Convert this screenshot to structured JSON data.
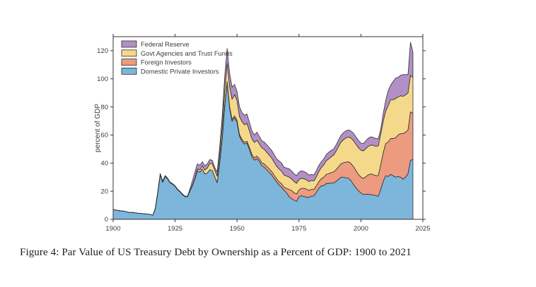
{
  "figure": {
    "caption": "Figure 4: Par Value of US Treasury Debt by Ownership as a Percent of GDP: 1900 to 2021"
  },
  "chart_data": {
    "type": "area",
    "stacked": true,
    "title": "",
    "xlabel": "",
    "ylabel": "percent of GDP",
    "xlim": [
      1900,
      2025
    ],
    "ylim": [
      0,
      130
    ],
    "x_ticks": [
      1900,
      1925,
      1950,
      1975,
      2000,
      2025
    ],
    "y_ticks": [
      0,
      20,
      40,
      60,
      80,
      100,
      120
    ],
    "grid": false,
    "legend_position": "top-left-inside",
    "legend_order_top_to_bottom": [
      "Federal Reserve",
      "Govt Agencies and Trust Funds",
      "Foreign Investors",
      "Domestic Private Investors"
    ],
    "start_year": 1900,
    "end_year": 2021,
    "edge_color": "#2f2f2f",
    "axis_color": "#333333",
    "series": [
      {
        "name": "Domestic Private Investors",
        "color": "#7db5db",
        "values": [
          7.0,
          6.6,
          6.3,
          6.0,
          5.9,
          5.6,
          5.1,
          4.8,
          4.9,
          4.6,
          4.3,
          4.2,
          4.0,
          3.8,
          3.7,
          3.4,
          2.9,
          7.5,
          18.8,
          31.7,
          26.4,
          30.5,
          28.8,
          26.0,
          25.0,
          23.5,
          21.1,
          19.5,
          17.6,
          16.1,
          16.0,
          20.3,
          23.9,
          28.7,
          34.6,
          33.5,
          35.8,
          32.3,
          32.9,
          35.3,
          34.7,
          30.3,
          26.0,
          40.0,
          56.7,
          79.8,
          97.0,
          79.3,
          69.7,
          72.3,
          69.1,
          59.1,
          55.6,
          53.5,
          54.3,
          49.7,
          44.6,
          42.0,
          43.3,
          41.2,
          38.1,
          37.1,
          35.2,
          33.4,
          31.6,
          29.0,
          26.6,
          24.3,
          22.8,
          20.6,
          18.9,
          16.2,
          14.7,
          13.7,
          12.7,
          16.0,
          16.9,
          16.1,
          15.9,
          15.5,
          16.6,
          16.7,
          19.2,
          22.0,
          23.9,
          24.0,
          25.5,
          25.5,
          25.8,
          25.9,
          27.0,
          28.5,
          30.0,
          30.0,
          29.5,
          29.3,
          27.5,
          24.8,
          22.4,
          20.3,
          18.8,
          17.6,
          17.8,
          17.9,
          17.6,
          17.3,
          16.9,
          16.4,
          21.5,
          27.0,
          31.0,
          30.5,
          32.0,
          31.0,
          30.0,
          30.5,
          30.0,
          28.5,
          30.0,
          32.5,
          42.0,
          42.5
        ]
      },
      {
        "name": "Foreign Investors",
        "color": "#ec9b80",
        "values": [
          0,
          0,
          0,
          0,
          0,
          0,
          0,
          0,
          0,
          0,
          0,
          0,
          0,
          0,
          0,
          0,
          0,
          0,
          0,
          0,
          0,
          0,
          0,
          0,
          0,
          0,
          0,
          0,
          0,
          0,
          0,
          0,
          0,
          0,
          0,
          0,
          0,
          0,
          0,
          0,
          0,
          0,
          0.2,
          0.5,
          0.8,
          1.0,
          1.0,
          1.3,
          1.4,
          1.4,
          1.4,
          1.3,
          1.3,
          1.3,
          1.3,
          1.5,
          1.6,
          1.7,
          1.7,
          2.0,
          2.2,
          2.3,
          2.4,
          2.5,
          2.5,
          2.4,
          2.2,
          2.3,
          2.5,
          2.2,
          3.1,
          5.1,
          5.8,
          5.3,
          5.2,
          4.9,
          5.2,
          5.9,
          5.6,
          5.0,
          4.7,
          4.5,
          4.6,
          4.7,
          4.9,
          6.0,
          6.5,
          7.0,
          7.4,
          7.8,
          8.4,
          9.0,
          9.5,
          10.3,
          11.2,
          11.7,
          12.3,
          12.8,
          12.3,
          11.7,
          11.2,
          11.5,
          12.6,
          13.8,
          14.7,
          14.5,
          14.2,
          14.8,
          17.5,
          20.5,
          23.0,
          24.5,
          25.5,
          26.5,
          28.0,
          29.5,
          31.0,
          32.5,
          32.0,
          31.0,
          34.5,
          33.0
        ]
      },
      {
        "name": "Govt Agencies and Trust Funds",
        "color": "#f5d98a",
        "values": [
          0,
          0,
          0,
          0,
          0,
          0,
          0,
          0,
          0,
          0,
          0,
          0,
          0,
          0,
          0,
          0,
          0,
          0,
          0,
          0,
          0,
          0,
          0,
          0,
          0,
          0,
          0,
          0,
          0,
          0,
          0,
          0.3,
          0.4,
          0.5,
          1.2,
          1.6,
          2.2,
          2.8,
          3.6,
          4.4,
          4.9,
          4.8,
          4.5,
          5.5,
          7.5,
          10.0,
          13.0,
          14.2,
          14.3,
          15.0,
          14.0,
          12.8,
          12.7,
          12.5,
          12.8,
          11.8,
          11.2,
          11.0,
          11.3,
          10.5,
          10.6,
          10.4,
          10.1,
          9.8,
          9.5,
          9.1,
          8.9,
          9.2,
          8.9,
          8.7,
          8.8,
          8.7,
          8.3,
          8.0,
          7.7,
          7.4,
          7.1,
          6.9,
          6.6,
          6.4,
          6.3,
          6.1,
          6.4,
          7.2,
          8.0,
          8.8,
          9.6,
          10.5,
          11.3,
          12.1,
          13.2,
          14.5,
          15.5,
          16.4,
          17.3,
          17.6,
          18.0,
          18.4,
          18.8,
          19.0,
          19.2,
          19.6,
          20.0,
          20.3,
          20.6,
          20.8,
          20.9,
          21.1,
          21.7,
          22.3,
          23.0,
          26.0,
          27.5,
          27.5,
          28.0,
          27.0,
          27.0,
          26.5,
          26.5,
          26.5,
          26.0,
          25.5
        ]
      },
      {
        "name": "Federal Reserve",
        "color": "#b28fc5",
        "values": [
          0,
          0,
          0,
          0,
          0,
          0,
          0,
          0,
          0,
          0,
          0,
          0,
          0,
          0,
          0,
          0,
          0,
          0.4,
          0.8,
          0.9,
          0.8,
          0.7,
          0.5,
          0.4,
          0.4,
          0.4,
          0.4,
          0.4,
          0.4,
          0.4,
          0.5,
          0.9,
          3.2,
          4.3,
          3.7,
          3.4,
          3.0,
          2.9,
          3.0,
          2.8,
          2.4,
          1.9,
          3.0,
          5.5,
          8.0,
          10.2,
          10.7,
          9.2,
          8.6,
          7.3,
          6.5,
          6.8,
          6.4,
          6.7,
          6.6,
          6.0,
          5.6,
          5.3,
          5.7,
          5.3,
          5.1,
          5.2,
          5.3,
          5.3,
          5.4,
          5.5,
          5.3,
          5.7,
          5.8,
          5.5,
          5.7,
          6.0,
          5.7,
          5.5,
          5.4,
          5.2,
          5.3,
          5.1,
          4.9,
          4.6,
          4.4,
          4.2,
          4.3,
          4.4,
          4.1,
          4.2,
          4.4,
          4.7,
          4.5,
          4.2,
          4.4,
          4.5,
          4.8,
          5.0,
          5.0,
          5.0,
          5.0,
          5.2,
          5.1,
          5.2,
          5.0,
          5.2,
          5.5,
          5.8,
          5.8,
          5.7,
          5.5,
          5.1,
          3.3,
          5.5,
          7.5,
          10.5,
          10.5,
          13.0,
          14.5,
          14.0,
          14.5,
          15.5,
          14.5,
          13.0,
          23.5,
          18.0
        ]
      }
    ]
  }
}
